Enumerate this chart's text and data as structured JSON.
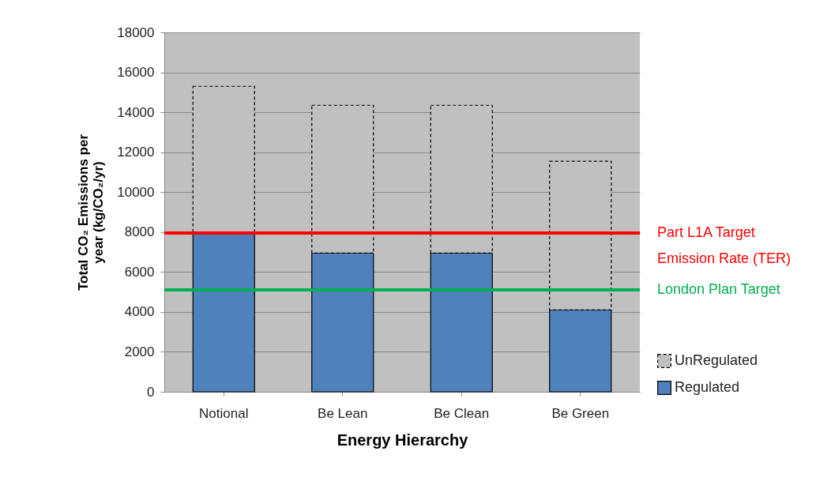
{
  "chart_data": {
    "type": "bar",
    "stacked": true,
    "ylabel": "Total CO₂ Emissions per year (kg/CO₂/yr)",
    "xlabel": "Energy Hierarchy",
    "categories": [
      "Notional",
      "Be Lean",
      "Be Clean",
      "Be Green"
    ],
    "series": [
      {
        "name": "Regulated",
        "color": "#4f81bd",
        "values": [
          7950,
          6950,
          6950,
          4100
        ]
      },
      {
        "name": "UnRegulated",
        "color": "#c0c0c0",
        "line_style": "dashed",
        "values": [
          7350,
          7400,
          7400,
          7450
        ]
      }
    ],
    "ylim": [
      0,
      18000
    ],
    "yticks": [
      0,
      2000,
      4000,
      6000,
      8000,
      10000,
      12000,
      14000,
      16000,
      18000
    ],
    "ref_lines": [
      {
        "axis": "y",
        "value": 7950,
        "label": "Part L1A Target Emission Rate (TER)",
        "color": "#ff0000"
      },
      {
        "axis": "y",
        "value": 5100,
        "label": "London Plan Target",
        "color": "#00b050"
      }
    ],
    "grid": "y",
    "legend": "bottom right"
  }
}
